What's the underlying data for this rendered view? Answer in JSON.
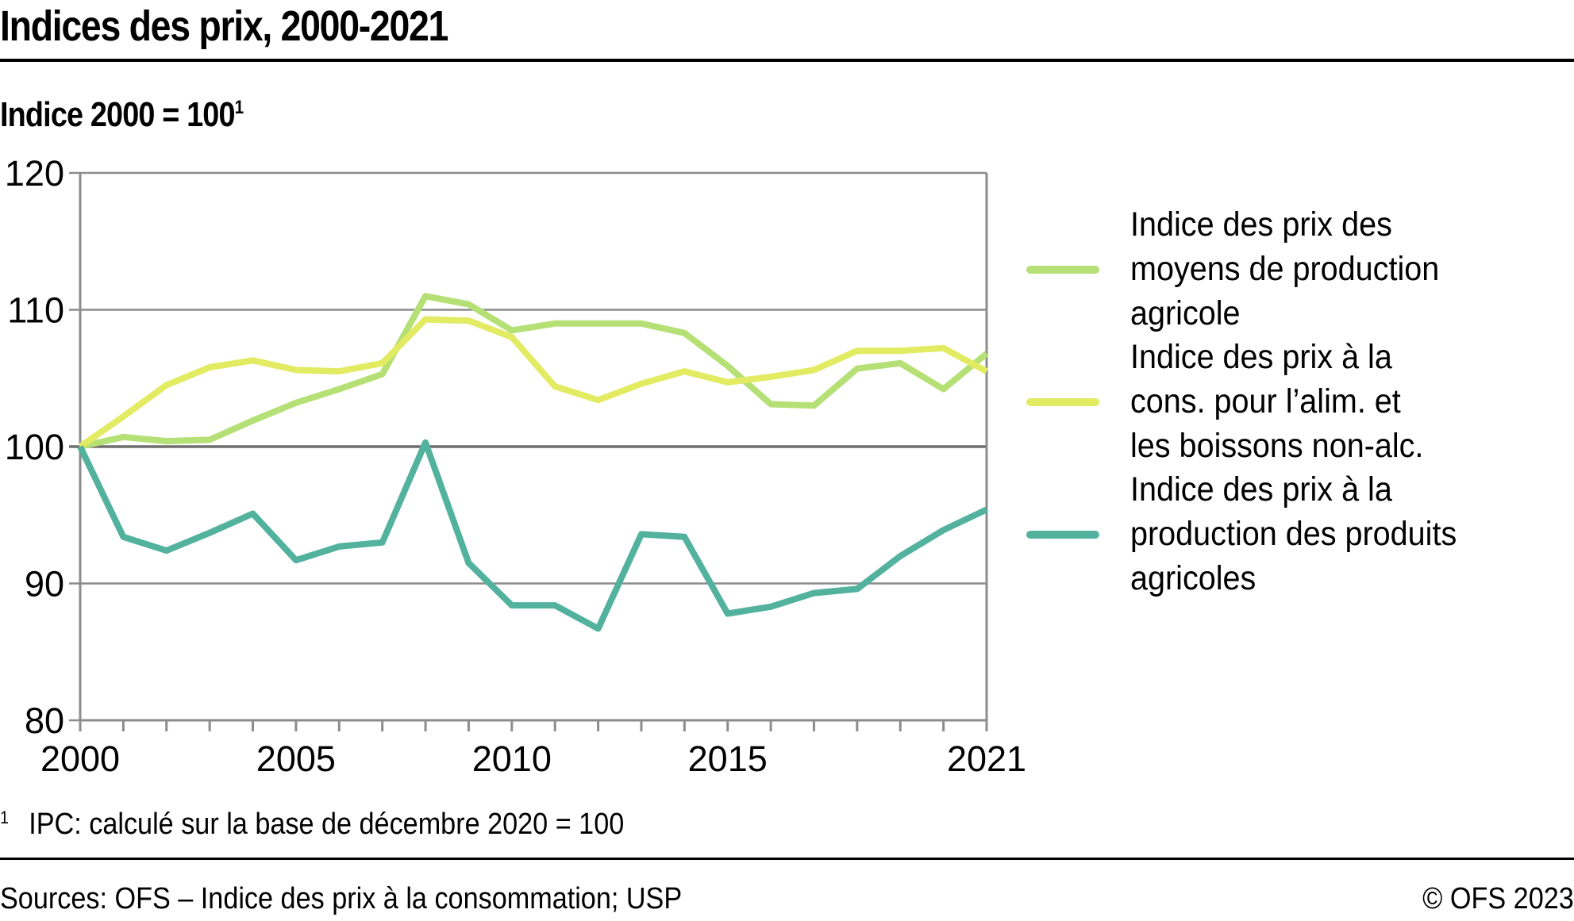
{
  "header": {
    "title": "Indices des prix, 2000-2021",
    "subtitle": "Indice 2000 = 100",
    "subtitle_footnote_marker": "1"
  },
  "footer": {
    "footnote_marker": "1",
    "footnote": "IPC: calculé sur la base de décembre 2020 = 100",
    "source": "Sources: OFS – Indice des prix à la consommation; USP",
    "copyright": "© OFS 2023"
  },
  "chart_data": {
    "type": "line",
    "title": "Indices des prix, 2000-2021",
    "subtitle": "Indice 2000 = 100¹",
    "xlabel": "",
    "ylabel": "Indice 2000 = 100",
    "x": [
      2000,
      2001,
      2002,
      2003,
      2004,
      2005,
      2006,
      2007,
      2008,
      2009,
      2010,
      2011,
      2012,
      2013,
      2014,
      2015,
      2016,
      2017,
      2018,
      2019,
      2020,
      2021
    ],
    "xlim": [
      2000,
      2021
    ],
    "ylim": [
      80,
      120
    ],
    "x_ticks": [
      "2000",
      "2005",
      "2010",
      "2015",
      "2021"
    ],
    "x_tick_values": [
      2000,
      2005,
      2010,
      2015,
      2021
    ],
    "y_ticks": [
      "80",
      "90",
      "100",
      "110",
      "120"
    ],
    "y_tick_values": [
      80,
      90,
      100,
      110,
      120
    ],
    "grid": true,
    "legend_position": "right",
    "series": [
      {
        "name": "Indice des prix des moyens de production agricole",
        "legend_lines": [
          "Indice des prix des",
          "moyens de production",
          "agricole"
        ],
        "color": "#b5e075",
        "values": [
          100.0,
          100.7,
          100.4,
          100.5,
          101.9,
          103.2,
          104.2,
          105.3,
          111.0,
          110.4,
          108.5,
          109.0,
          109.0,
          109.0,
          108.3,
          105.9,
          103.1,
          103.0,
          105.7,
          106.1,
          104.2,
          106.8
        ]
      },
      {
        "name": "Indice des prix à la cons. pour l’alim. et les boissons non-alc.",
        "legend_lines": [
          "Indice des prix à la",
          "cons. pour l’alim. et",
          "les boissons non-alc."
        ],
        "color": "#e2eb61",
        "values": [
          100.0,
          102.2,
          104.5,
          105.8,
          106.3,
          105.6,
          105.5,
          106.1,
          109.3,
          109.2,
          108.0,
          104.4,
          103.4,
          104.6,
          105.5,
          104.7,
          105.1,
          105.6,
          107.0,
          107.0,
          107.2,
          105.5
        ]
      },
      {
        "name": "Indice des prix à la production des produits agricoles",
        "legend_lines": [
          "Indice des prix à la",
          "production des produits",
          "agricoles"
        ],
        "color": "#52b29e",
        "values": [
          100.0,
          93.4,
          92.4,
          93.7,
          95.1,
          91.7,
          92.7,
          93.0,
          100.3,
          91.5,
          88.4,
          88.4,
          86.7,
          93.6,
          93.4,
          87.8,
          88.3,
          89.3,
          89.6,
          92.0,
          93.9,
          95.4
        ]
      }
    ]
  }
}
